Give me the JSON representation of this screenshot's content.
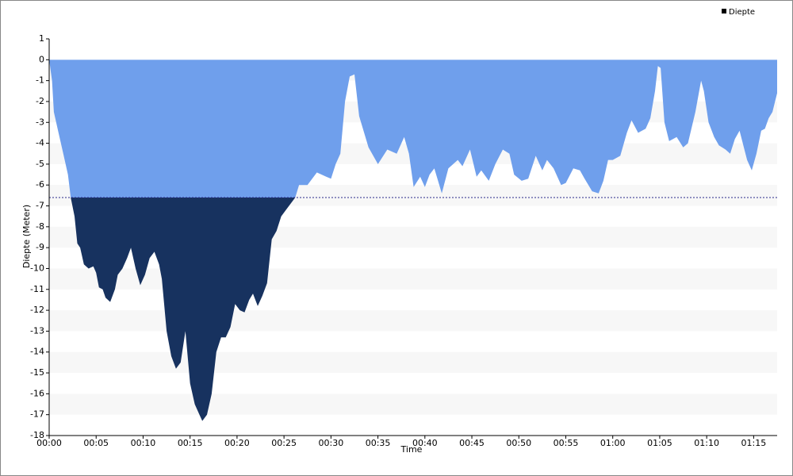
{
  "chart_data": {
    "type": "area",
    "x_label": "Time",
    "y_label": "Diepte (Meter)",
    "legend": "top-right",
    "series": [
      {
        "name": "Diepte",
        "color": "#6f9fec",
        "deep_color": "#17325f",
        "x": [
          0,
          0.3,
          0.5,
          1,
          1.5,
          2,
          2.3,
          2.7,
          3,
          3.3,
          3.7,
          4.2,
          4.7,
          5,
          5.3,
          5.7,
          6,
          6.5,
          7,
          7.3,
          7.8,
          8.3,
          8.7,
          9.2,
          9.7,
          10.2,
          10.7,
          11.2,
          11.7,
          12,
          12.5,
          13,
          13.5,
          14,
          14.5,
          15,
          15.5,
          16,
          16.3,
          16.8,
          17.3,
          17.8,
          18.3,
          18.8,
          19.3,
          19.8,
          20.3,
          20.8,
          21.3,
          21.7,
          22.2,
          22.7,
          23.2,
          23.7,
          24.2,
          24.7,
          25.2,
          25.7,
          26.2,
          26.6,
          27.5,
          28.5,
          29.5,
          30,
          30.5,
          31,
          31.5,
          32,
          32.5,
          33,
          34,
          35,
          36,
          37,
          37.8,
          38.3,
          38.8,
          39.5,
          40,
          40.5,
          41,
          41.8,
          42.5,
          43.5,
          44,
          44.8,
          45.5,
          46,
          46.8,
          47.5,
          48.3,
          49,
          49.5,
          50.3,
          51,
          51.8,
          52.5,
          53,
          53.7,
          54.5,
          55,
          55.8,
          56.5,
          57,
          57.8,
          58.5,
          59,
          59.5,
          60,
          60.8,
          61.5,
          62,
          62.7,
          63.5,
          64,
          64.5,
          64.8,
          65.1,
          65.5,
          66,
          66.8,
          67.5,
          68,
          68.8,
          69.4,
          69.7,
          70.2,
          70.8,
          71.3,
          72,
          72.5,
          73,
          73.5,
          74.3,
          74.8,
          75.3,
          75.8,
          76.2,
          76.6,
          77,
          77.5
        ],
        "values": [
          0,
          -1,
          -2.5,
          -3.5,
          -4.5,
          -5.5,
          -6.6,
          -7.5,
          -8.8,
          -9,
          -9.8,
          -10,
          -9.9,
          -10.2,
          -10.9,
          -11,
          -11.4,
          -11.6,
          -11,
          -10.3,
          -10,
          -9.5,
          -9,
          -10,
          -10.8,
          -10.3,
          -9.5,
          -9.2,
          -9.8,
          -10.5,
          -13,
          -14.2,
          -14.8,
          -14.5,
          -13,
          -15.5,
          -16.5,
          -17,
          -17.3,
          -17,
          -16,
          -14,
          -13.3,
          -13.3,
          -12.8,
          -11.7,
          -12,
          -12.1,
          -11.5,
          -11.2,
          -11.8,
          -11.3,
          -10.7,
          -8.6,
          -8.2,
          -7.5,
          -7.2,
          -6.9,
          -6.6,
          -6,
          -6,
          -5.4,
          -5.6,
          -5.7,
          -5,
          -4.5,
          -2,
          -0.8,
          -0.7,
          -2.7,
          -4.2,
          -5,
          -4.3,
          -4.5,
          -3.7,
          -4.5,
          -6.1,
          -5.6,
          -6.1,
          -5.5,
          -5.2,
          -6.4,
          -5.2,
          -4.8,
          -5.1,
          -4.3,
          -5.6,
          -5.3,
          -5.8,
          -5,
          -4.3,
          -4.5,
          -5.5,
          -5.8,
          -5.7,
          -4.6,
          -5.3,
          -4.8,
          -5.2,
          -6,
          -5.9,
          -5.2,
          -5.3,
          -5.7,
          -6.3,
          -6.4,
          -5.8,
          -4.8,
          -4.8,
          -4.6,
          -3.5,
          -2.9,
          -3.5,
          -3.3,
          -2.8,
          -1.5,
          -0.3,
          -0.4,
          -3,
          -3.9,
          -3.7,
          -4.2,
          -4,
          -2.5,
          -1,
          -1.5,
          -3,
          -3.7,
          -4.1,
          -4.3,
          -4.5,
          -3.8,
          -3.4,
          -4.8,
          -5.3,
          -4.5,
          -3.4,
          -3.3,
          -2.8,
          -2.5,
          -1.6
        ]
      }
    ],
    "threshold": -6.6,
    "xlim": [
      0,
      77.5
    ],
    "xticks": [
      {
        "value": 0,
        "label": "00:00"
      },
      {
        "value": 5,
        "label": "00:05"
      },
      {
        "value": 10,
        "label": "00:10"
      },
      {
        "value": 15,
        "label": "00:15"
      },
      {
        "value": 20,
        "label": "00:20"
      },
      {
        "value": 25,
        "label": "00:25"
      },
      {
        "value": 30,
        "label": "00:30"
      },
      {
        "value": 35,
        "label": "00:35"
      },
      {
        "value": 40,
        "label": "00:40"
      },
      {
        "value": 45,
        "label": "00:45"
      },
      {
        "value": 50,
        "label": "00:50"
      },
      {
        "value": 55,
        "label": "00:55"
      },
      {
        "value": 60,
        "label": "01:00"
      },
      {
        "value": 65,
        "label": "01:05"
      },
      {
        "value": 70,
        "label": "01:10"
      },
      {
        "value": 75,
        "label": "01:15"
      }
    ],
    "ylim": [
      -18,
      1
    ],
    "yticks": [
      -18,
      -17,
      -16,
      -15,
      -14,
      -13,
      -12,
      -11,
      -10,
      -9,
      -8,
      -7,
      -6,
      -5,
      -4,
      -3,
      -2,
      -1,
      0,
      1
    ],
    "grid": "bands"
  }
}
